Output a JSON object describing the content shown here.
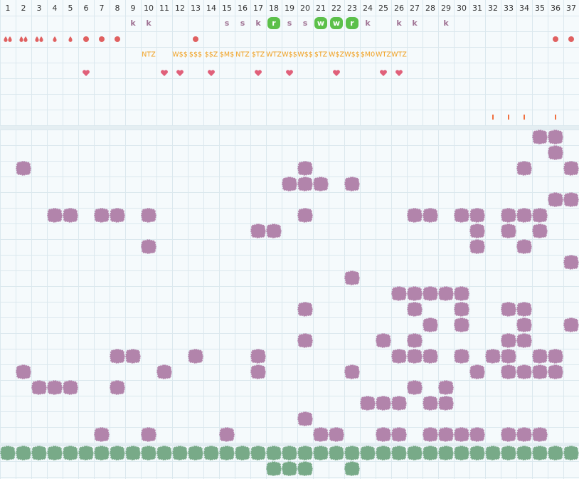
{
  "header": {
    "columns": [
      1,
      2,
      3,
      4,
      5,
      6,
      7,
      8,
      9,
      10,
      11,
      12,
      13,
      14,
      15,
      16,
      17,
      18,
      19,
      20,
      21,
      22,
      23,
      24,
      25,
      26,
      27,
      28,
      29,
      30,
      31,
      32,
      33,
      34,
      35,
      36,
      37
    ]
  },
  "letters": [
    null,
    null,
    null,
    null,
    null,
    null,
    null,
    null,
    "k",
    "k",
    null,
    null,
    null,
    null,
    "s",
    "s",
    "k",
    "r",
    "s",
    "s",
    "w",
    "w",
    "r",
    "k",
    null,
    "k",
    "k",
    null,
    "k",
    null,
    null,
    null,
    null,
    null,
    null,
    null,
    null
  ],
  "labels": [
    null,
    null,
    null,
    null,
    null,
    null,
    null,
    null,
    null,
    "NTZ",
    null,
    "W$$",
    "$$$",
    "$$Z",
    "$M$",
    "NTZ",
    "$TZ",
    "WTZ",
    "W$$",
    "W$$",
    "$TZ",
    "W$Z",
    "W$$",
    "$M0",
    "WTZ",
    "WTZ",
    null,
    null,
    null,
    null,
    null,
    null,
    null,
    null,
    null,
    null,
    null
  ]
}
